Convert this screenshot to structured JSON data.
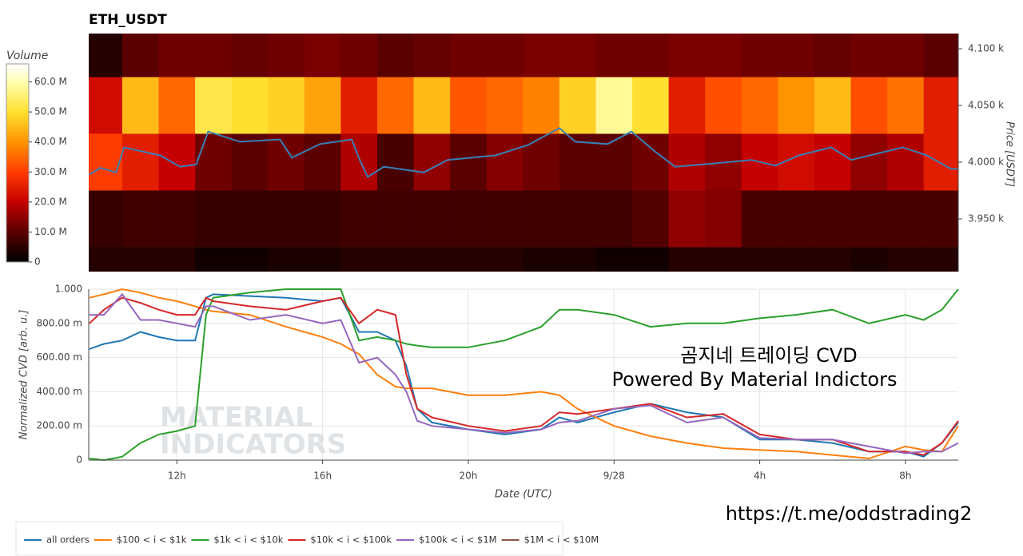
{
  "chart_data": [
    {
      "type": "heatmap",
      "title": "ETH_USDT",
      "colorbar_title": "Volume",
      "y_label": "Price [USDT]",
      "xlim": [
        9.58,
        33.45
      ],
      "ylim": [
        3903.5,
        4113.4
      ],
      "yticks": [
        {
          "value": 3950,
          "label": "3.950 k"
        },
        {
          "value": 4000,
          "label": "4.000 k"
        },
        {
          "value": 4050,
          "label": "4.050 k"
        },
        {
          "value": 4100,
          "label": "4.100 k"
        }
      ],
      "clim": [
        0,
        66000000
      ],
      "cticks": [
        0,
        {
          "value": 10000000,
          "label": "10.0 M"
        },
        {
          "value": 20000000,
          "label": "20.0 M"
        },
        {
          "value": 30000000,
          "label": "30.0 M"
        },
        {
          "value": 40000000,
          "label": "40.0 M"
        },
        {
          "value": 50000000,
          "label": "50.0 M"
        },
        {
          "value": 60000000,
          "label": "60.0 M"
        }
      ],
      "colorscale": [
        [
          0,
          "#000000"
        ],
        [
          10000000,
          "#5a0000"
        ],
        [
          20000000,
          "#c40000"
        ],
        [
          30000000,
          "#ff3c00"
        ],
        [
          40000000,
          "#ff9400"
        ],
        [
          50000000,
          "#ffe030"
        ],
        [
          60000000,
          "#ffffb0"
        ],
        [
          66000000,
          "#ffffff"
        ]
      ],
      "xbins": [
        9.58,
        10.5,
        11.5,
        12.5,
        13.5,
        14.5,
        15.5,
        16.5,
        17.5,
        18.5,
        19.5,
        20.5,
        21.5,
        22.5,
        23.5,
        24.5,
        25.5,
        26.5,
        27.5,
        28.5,
        29.5,
        30.5,
        31.5,
        32.5,
        33.45
      ],
      "ybins": [
        3875,
        3925,
        3975,
        4025,
        4075,
        4125
      ],
      "z": [
        [
          4000000,
          4000000,
          4000000,
          2000000,
          2000000,
          3000000,
          3000000,
          4000000,
          4000000,
          4000000,
          4000000,
          4000000,
          3000000,
          3000000,
          2000000,
          2000000,
          4000000,
          4000000,
          4000000,
          4000000,
          4000000,
          3000000,
          4000000,
          4000000
        ],
        [
          6000000,
          7000000,
          7000000,
          6000000,
          6000000,
          6000000,
          6000000,
          7000000,
          7000000,
          7000000,
          7000000,
          7000000,
          7000000,
          7000000,
          7000000,
          9000000,
          15000000,
          14000000,
          8000000,
          8000000,
          8000000,
          8000000,
          8000000,
          8000000
        ],
        [
          30000000,
          25000000,
          20000000,
          12000000,
          10000000,
          12000000,
          10000000,
          18000000,
          8000000,
          15000000,
          10000000,
          14000000,
          12000000,
          10000000,
          10000000,
          12000000,
          18000000,
          15000000,
          20000000,
          22000000,
          20000000,
          15000000,
          18000000,
          25000000
        ],
        [
          22000000,
          45000000,
          35000000,
          52000000,
          50000000,
          48000000,
          42000000,
          25000000,
          35000000,
          45000000,
          33000000,
          35000000,
          38000000,
          48000000,
          58000000,
          50000000,
          25000000,
          32000000,
          35000000,
          40000000,
          45000000,
          32000000,
          36000000,
          25000000
        ],
        [
          4000000,
          10000000,
          12000000,
          12000000,
          11000000,
          12000000,
          13000000,
          12000000,
          10000000,
          11000000,
          12000000,
          12000000,
          13000000,
          13000000,
          12000000,
          12000000,
          13000000,
          13000000,
          12000000,
          12000000,
          11000000,
          12000000,
          12000000,
          10000000
        ]
      ],
      "line": {
        "color": "#3a7fb5",
        "x": [
          9.59,
          9.9,
          10.33,
          10.55,
          11.54,
          12.09,
          12.53,
          12.86,
          13.73,
          14.83,
          15.16,
          15.93,
          16.8,
          17.02,
          17.24,
          17.68,
          18.78,
          19.43,
          20.75,
          21.63,
          22.5,
          22.94,
          23.82,
          24.48,
          25.14,
          25.68,
          26.45,
          27.77,
          28.43,
          29.08,
          29.96,
          30.51,
          31.28,
          31.93,
          32.59,
          33.25,
          33.45
        ],
        "values": [
          3989,
          3995,
          3991,
          4013,
          4006,
          3996,
          3998,
          4027,
          4018,
          4020,
          4004,
          4016,
          4020,
          4002,
          3987,
          3996,
          3991,
          4002,
          4006,
          4015,
          4030,
          4018,
          4016,
          4027,
          4009,
          3996,
          3998,
          4002,
          3997,
          4006,
          4013,
          4002,
          4008,
          4013,
          4006,
          3994,
          3994
        ]
      }
    },
    {
      "type": "line",
      "x_label": "Date (UTC)",
      "y_label": "Normalized CVD [arb. u.]",
      "grid": true,
      "xlim": [
        9.58,
        33.45
      ],
      "ylim": [
        0,
        1
      ],
      "xticks": [
        {
          "value": 12,
          "label": "12h"
        },
        {
          "value": 16,
          "label": "16h"
        },
        {
          "value": 20,
          "label": "20h"
        },
        {
          "value": 24,
          "label": "9/28"
        },
        {
          "value": 28,
          "label": "4h"
        },
        {
          "value": 32,
          "label": "8h"
        }
      ],
      "yticks": [
        0,
        {
          "value": 0.2,
          "label": "200.00 m"
        },
        {
          "value": 0.4,
          "label": "400.00 m"
        },
        {
          "value": 0.6,
          "label": "600.00 m"
        },
        {
          "value": 0.8,
          "label": "800.00 m"
        },
        {
          "value": 1,
          "label": "1.000"
        }
      ],
      "annotations": [
        "곰지네 트레이딩 CVD",
        "Powered By Material Indictors",
        "https://t.me/oddstrading2"
      ],
      "watermark": [
        "MATERIAL",
        "INDICATORS"
      ],
      "x": [
        9.6,
        10,
        10.5,
        11,
        11.5,
        12,
        12.5,
        12.8,
        13,
        14,
        15,
        16,
        16.5,
        17,
        17.5,
        18,
        18.3,
        18.6,
        19,
        20,
        21,
        22,
        22.5,
        23,
        24,
        25,
        26,
        27,
        28,
        29,
        30,
        31,
        32,
        32.5,
        33,
        33.45
      ],
      "series": [
        {
          "name": "all orders",
          "color": "#1f77b4",
          "values": [
            0.65,
            0.68,
            0.7,
            0.75,
            0.72,
            0.7,
            0.7,
            0.95,
            0.97,
            0.96,
            0.95,
            0.93,
            0.95,
            0.75,
            0.75,
            0.7,
            0.55,
            0.3,
            0.22,
            0.18,
            0.15,
            0.18,
            0.25,
            0.22,
            0.28,
            0.33,
            0.28,
            0.25,
            0.12,
            0.12,
            0.1,
            0.05,
            0.05,
            0.02,
            0.1,
            0.22
          ]
        },
        {
          "name": "$100 < i < $1k",
          "color": "#ff7f0e",
          "values": [
            0.95,
            0.97,
            1.0,
            0.98,
            0.95,
            0.93,
            0.9,
            0.88,
            0.87,
            0.85,
            0.78,
            0.72,
            0.68,
            0.62,
            0.5,
            0.43,
            0.42,
            0.42,
            0.42,
            0.38,
            0.38,
            0.4,
            0.38,
            0.3,
            0.2,
            0.14,
            0.1,
            0.07,
            0.06,
            0.05,
            0.03,
            0.01,
            0.08,
            0.06,
            0.05,
            0.2
          ]
        },
        {
          "name": "$1k < i < $10k",
          "color": "#2ca02c",
          "values": [
            0.01,
            0.0,
            0.02,
            0.1,
            0.15,
            0.17,
            0.2,
            0.85,
            0.95,
            0.98,
            1.0,
            1.0,
            1.0,
            0.7,
            0.72,
            0.7,
            0.68,
            0.67,
            0.66,
            0.66,
            0.7,
            0.78,
            0.88,
            0.88,
            0.85,
            0.78,
            0.8,
            0.8,
            0.83,
            0.85,
            0.88,
            0.8,
            0.85,
            0.82,
            0.88,
            1.0
          ]
        },
        {
          "name": "$10k < i < $100k",
          "color": "#d62728",
          "values": [
            0.8,
            0.88,
            0.95,
            0.92,
            0.88,
            0.85,
            0.85,
            0.95,
            0.93,
            0.9,
            0.88,
            0.93,
            0.95,
            0.8,
            0.88,
            0.85,
            0.5,
            0.3,
            0.25,
            0.2,
            0.17,
            0.2,
            0.28,
            0.27,
            0.3,
            0.33,
            0.25,
            0.27,
            0.15,
            0.12,
            0.12,
            0.05,
            0.05,
            0.03,
            0.1,
            0.23
          ]
        },
        {
          "name": "$100k < i < $1M",
          "color": "#9467bd",
          "values": [
            0.85,
            0.85,
            0.97,
            0.82,
            0.82,
            0.8,
            0.78,
            0.9,
            0.9,
            0.82,
            0.85,
            0.8,
            0.82,
            0.57,
            0.6,
            0.5,
            0.4,
            0.23,
            0.2,
            0.18,
            0.16,
            0.18,
            0.22,
            0.23,
            0.3,
            0.32,
            0.22,
            0.25,
            0.13,
            0.12,
            0.12,
            0.08,
            0.04,
            0.05,
            0.05,
            0.1
          ]
        },
        {
          "name": "$1M < i < $10M",
          "color": "#8c564b",
          "values": [
            null,
            null,
            null,
            null,
            null,
            null,
            null,
            null,
            null,
            null,
            null,
            null,
            null,
            null,
            null,
            null,
            null,
            null,
            null,
            null,
            null,
            null,
            null,
            null,
            null,
            null,
            null,
            null,
            null,
            null,
            null,
            null,
            null,
            null,
            null,
            null
          ]
        }
      ]
    }
  ]
}
